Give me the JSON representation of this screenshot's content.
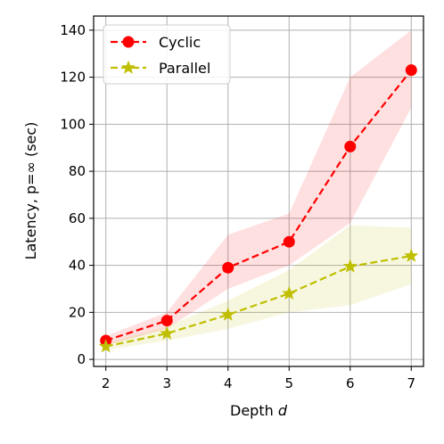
{
  "chart_data": {
    "type": "line",
    "xlabel_prefix": "Depth ",
    "xlabel_var": "d",
    "ylabel": "Latency, p=∞ (sec)",
    "x": [
      2,
      3,
      4,
      5,
      6,
      7
    ],
    "xlim": [
      1.8,
      7.2
    ],
    "ylim": [
      -3,
      146
    ],
    "xticks": [
      2,
      3,
      4,
      5,
      6,
      7
    ],
    "yticks": [
      0,
      20,
      40,
      60,
      80,
      100,
      120,
      140
    ],
    "grid": true,
    "legend_position": "upper-left",
    "series": [
      {
        "name": "Cyclic",
        "color": "#ff0000",
        "marker": "circle",
        "linestyle": "dashed",
        "values": [
          8,
          16.5,
          39,
          50,
          90.5,
          123
        ],
        "band_low": [
          6,
          13,
          30,
          40,
          58,
          107
        ],
        "band_high": [
          10,
          20,
          53,
          62,
          120,
          140
        ]
      },
      {
        "name": "Parallel",
        "color": "#bfbf00",
        "marker": "star",
        "linestyle": "dashed",
        "values": [
          5.5,
          11,
          19,
          28,
          39.5,
          44
        ],
        "band_low": [
          4,
          8,
          13,
          20,
          23,
          32
        ],
        "band_high": [
          7,
          14,
          25,
          38,
          57,
          56
        ]
      }
    ]
  }
}
